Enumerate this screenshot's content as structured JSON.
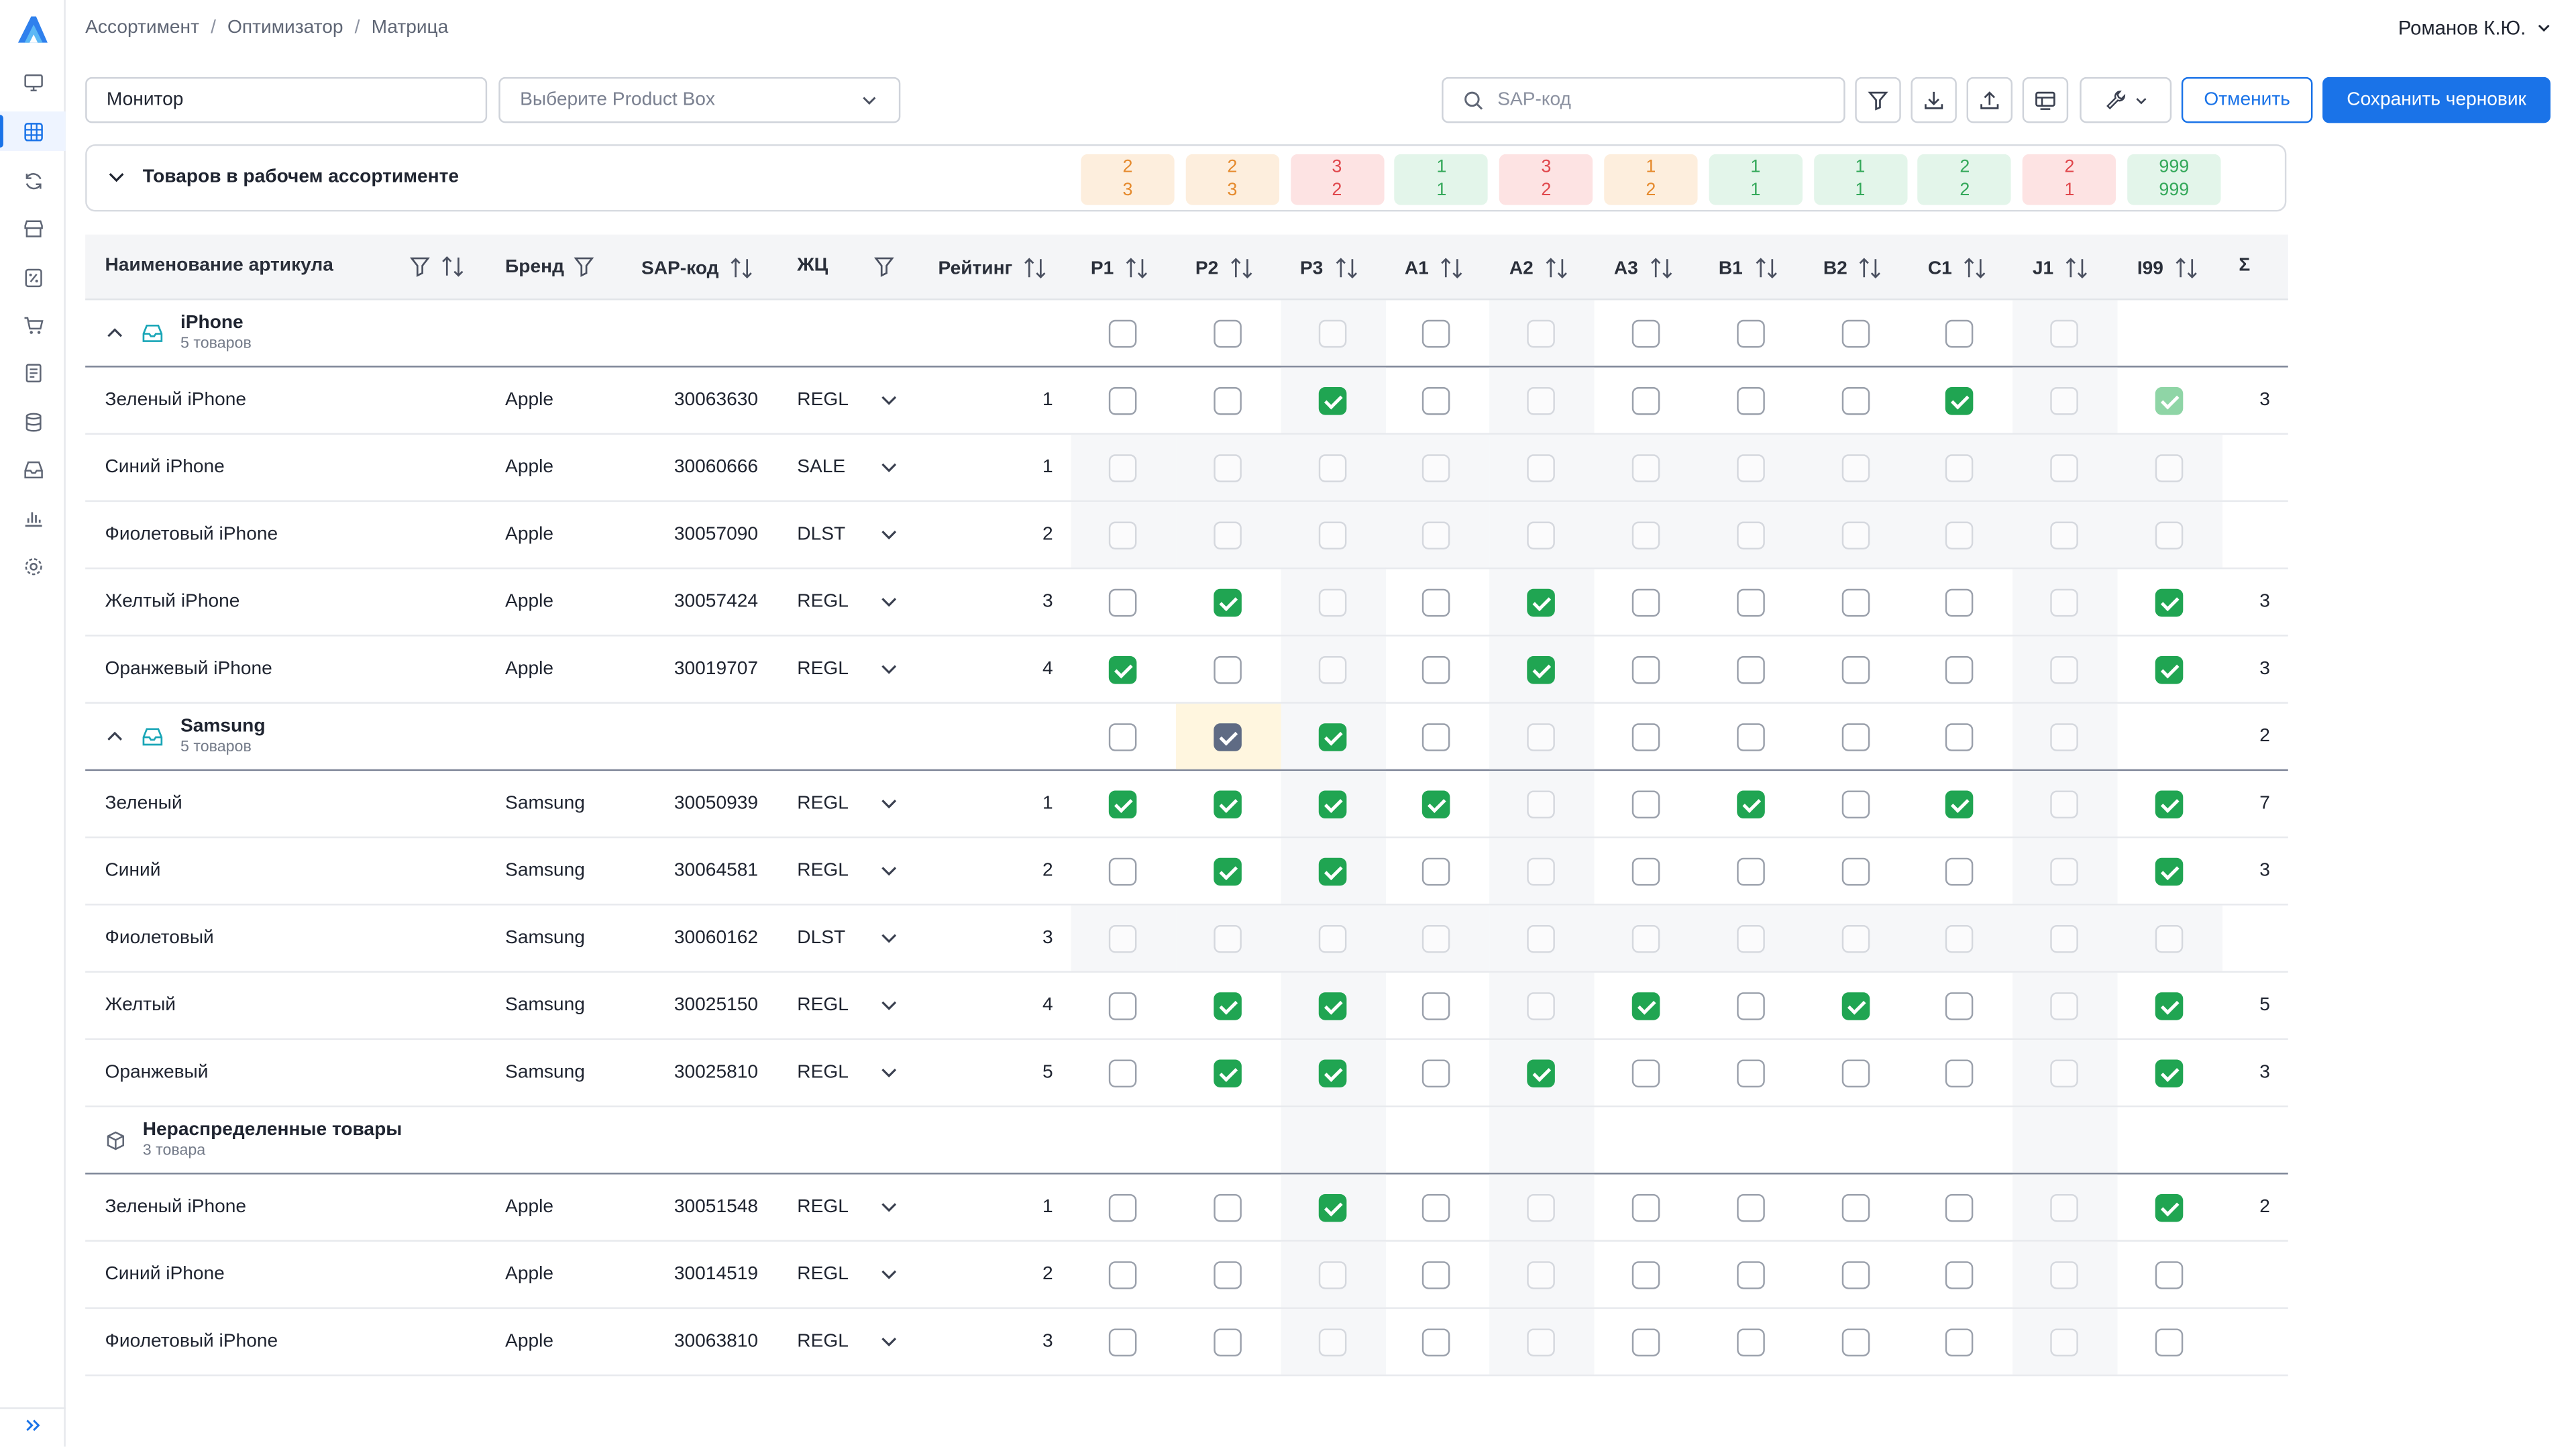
{
  "breadcrumb": [
    "Ассортимент",
    "Оптимизатор",
    "Матрица"
  ],
  "user": "Романов К.Ю.",
  "toolbar": {
    "store_value": "Монитор",
    "product_box_placeholder": "Выберите Product Box",
    "search_placeholder": "SAP-код",
    "cancel_label": "Отменить",
    "save_label": "Сохранить черновик"
  },
  "summary": {
    "title": "Товаров в рабочем ассортименте",
    "cells": [
      {
        "top": "2",
        "bottom": "3",
        "tone": "orange"
      },
      {
        "top": "2",
        "bottom": "3",
        "tone": "orange"
      },
      {
        "top": "3",
        "bottom": "2",
        "tone": "red"
      },
      {
        "top": "1",
        "bottom": "1",
        "tone": "green"
      },
      {
        "top": "3",
        "bottom": "2",
        "tone": "red"
      },
      {
        "top": "1",
        "bottom": "2",
        "tone": "orange"
      },
      {
        "top": "1",
        "bottom": "1",
        "tone": "green"
      },
      {
        "top": "1",
        "bottom": "1",
        "tone": "green"
      },
      {
        "top": "2",
        "bottom": "2",
        "tone": "green"
      },
      {
        "top": "2",
        "bottom": "1",
        "tone": "red"
      },
      {
        "top": "999",
        "bottom": "999",
        "tone": "green"
      }
    ]
  },
  "table": {
    "headers": {
      "name": "Наименование артикула",
      "brand": "Бренд",
      "sap": "SAP-код",
      "lc": "ЖЦ",
      "rating": "Рейтинг",
      "sum": "Σ"
    },
    "clusters": [
      "P1",
      "P2",
      "P3",
      "A1",
      "A2",
      "A3",
      "B1",
      "B2",
      "C1",
      "J1",
      "I99"
    ],
    "rows": [
      {
        "type": "group",
        "icon": "inbox",
        "name": "iPhone",
        "count": "5 товаров",
        "expanded": true,
        "checks": [
          "e",
          "e",
          "d",
          "e",
          "d",
          "e",
          "e",
          "e",
          "e",
          "d",
          ""
        ],
        "sum": ""
      },
      {
        "type": "item",
        "name": "Зеленый iPhone",
        "brand": "Apple",
        "sap": "30063630",
        "lc": "REGL",
        "rating": "1",
        "checks": [
          "e",
          "e",
          "c",
          "e",
          "d",
          "e",
          "e",
          "e",
          "c",
          "d",
          "cd"
        ],
        "sum": "3"
      },
      {
        "type": "item",
        "name": "Синий iPhone",
        "brand": "Apple",
        "sap": "30060666",
        "lc": "SALE",
        "rating": "1",
        "checks": [
          "d",
          "d",
          "d",
          "d",
          "d",
          "d",
          "d",
          "d",
          "d",
          "d",
          "d"
        ],
        "sum": ""
      },
      {
        "type": "item",
        "name": "Фиолетовый iPhone",
        "brand": "Apple",
        "sap": "30057090",
        "lc": "DLST",
        "rating": "2",
        "checks": [
          "d",
          "d",
          "d",
          "d",
          "d",
          "d",
          "d",
          "d",
          "d",
          "d",
          "d"
        ],
        "sum": ""
      },
      {
        "type": "item",
        "name": "Желтый iPhone",
        "brand": "Apple",
        "sap": "30057424",
        "lc": "REGL",
        "rating": "3",
        "checks": [
          "e",
          "c",
          "d",
          "e",
          "c",
          "e",
          "e",
          "e",
          "e",
          "d",
          "c"
        ],
        "sum": "3"
      },
      {
        "type": "item",
        "name": "Оранжевый iPhone",
        "brand": "Apple",
        "sap": "30019707",
        "lc": "REGL",
        "rating": "4",
        "checks": [
          "c",
          "e",
          "d",
          "e",
          "c",
          "e",
          "e",
          "e",
          "e",
          "d",
          "c"
        ],
        "sum": "3"
      },
      {
        "type": "group",
        "icon": "inbox",
        "name": "Samsung",
        "count": "5 товаров",
        "expanded": true,
        "checks": [
          "e",
          "p",
          "c",
          "e",
          "d",
          "e",
          "e",
          "e",
          "e",
          "d",
          ""
        ],
        "sum": "2"
      },
      {
        "type": "item",
        "name": "Зеленый",
        "brand": "Samsung",
        "sap": "30050939",
        "lc": "REGL",
        "rating": "1",
        "checks": [
          "c",
          "c",
          "c",
          "c",
          "d",
          "e",
          "c",
          "e",
          "c",
          "d",
          "c"
        ],
        "sum": "7"
      },
      {
        "type": "item",
        "name": "Синий",
        "brand": "Samsung",
        "sap": "30064581",
        "lc": "REGL",
        "rating": "2",
        "checks": [
          "e",
          "c",
          "c",
          "e",
          "d",
          "e",
          "e",
          "e",
          "e",
          "d",
          "c"
        ],
        "sum": "3"
      },
      {
        "type": "item",
        "name": "Фиолетовый",
        "brand": "Samsung",
        "sap": "30060162",
        "lc": "DLST",
        "rating": "3",
        "checks": [
          "d",
          "d",
          "d",
          "d",
          "d",
          "d",
          "d",
          "d",
          "d",
          "d",
          "d"
        ],
        "sum": ""
      },
      {
        "type": "item",
        "name": "Желтый",
        "brand": "Samsung",
        "sap": "30025150",
        "lc": "REGL",
        "rating": "4",
        "checks": [
          "e",
          "c",
          "c",
          "e",
          "d",
          "c",
          "e",
          "c",
          "e",
          "d",
          "c"
        ],
        "sum": "5"
      },
      {
        "type": "item",
        "name": "Оранжевый",
        "brand": "Samsung",
        "sap": "30025810",
        "lc": "REGL",
        "rating": "5",
        "checks": [
          "e",
          "c",
          "c",
          "e",
          "c",
          "e",
          "e",
          "e",
          "e",
          "d",
          "c"
        ],
        "sum": "3"
      },
      {
        "type": "group",
        "icon": "box",
        "name": "Нераспределенные товары",
        "count": "3 товара",
        "expanded": false,
        "checks": [
          "",
          "",
          "",
          "",
          "",
          "",
          "",
          "",
          "",
          "",
          ""
        ],
        "sum": ""
      },
      {
        "type": "item",
        "name": "Зеленый iPhone",
        "brand": "Apple",
        "sap": "30051548",
        "lc": "REGL",
        "rating": "1",
        "checks": [
          "e",
          "e",
          "c",
          "e",
          "d",
          "e",
          "e",
          "e",
          "e",
          "d",
          "c"
        ],
        "sum": "2"
      },
      {
        "type": "item",
        "name": "Синий iPhone",
        "brand": "Apple",
        "sap": "30014519",
        "lc": "REGL",
        "rating": "2",
        "checks": [
          "e",
          "e",
          "d",
          "e",
          "d",
          "e",
          "e",
          "e",
          "e",
          "d",
          "e"
        ],
        "sum": ""
      },
      {
        "type": "item",
        "name": "Фиолетовый iPhone",
        "brand": "Apple",
        "sap": "30063810",
        "lc": "REGL",
        "rating": "3",
        "checks": [
          "e",
          "e",
          "d",
          "e",
          "d",
          "e",
          "e",
          "e",
          "e",
          "d",
          "e"
        ],
        "sum": ""
      }
    ]
  },
  "colors": {
    "accent": "#1a73e8",
    "check": "#20a552",
    "partial": "#5f6b84"
  }
}
